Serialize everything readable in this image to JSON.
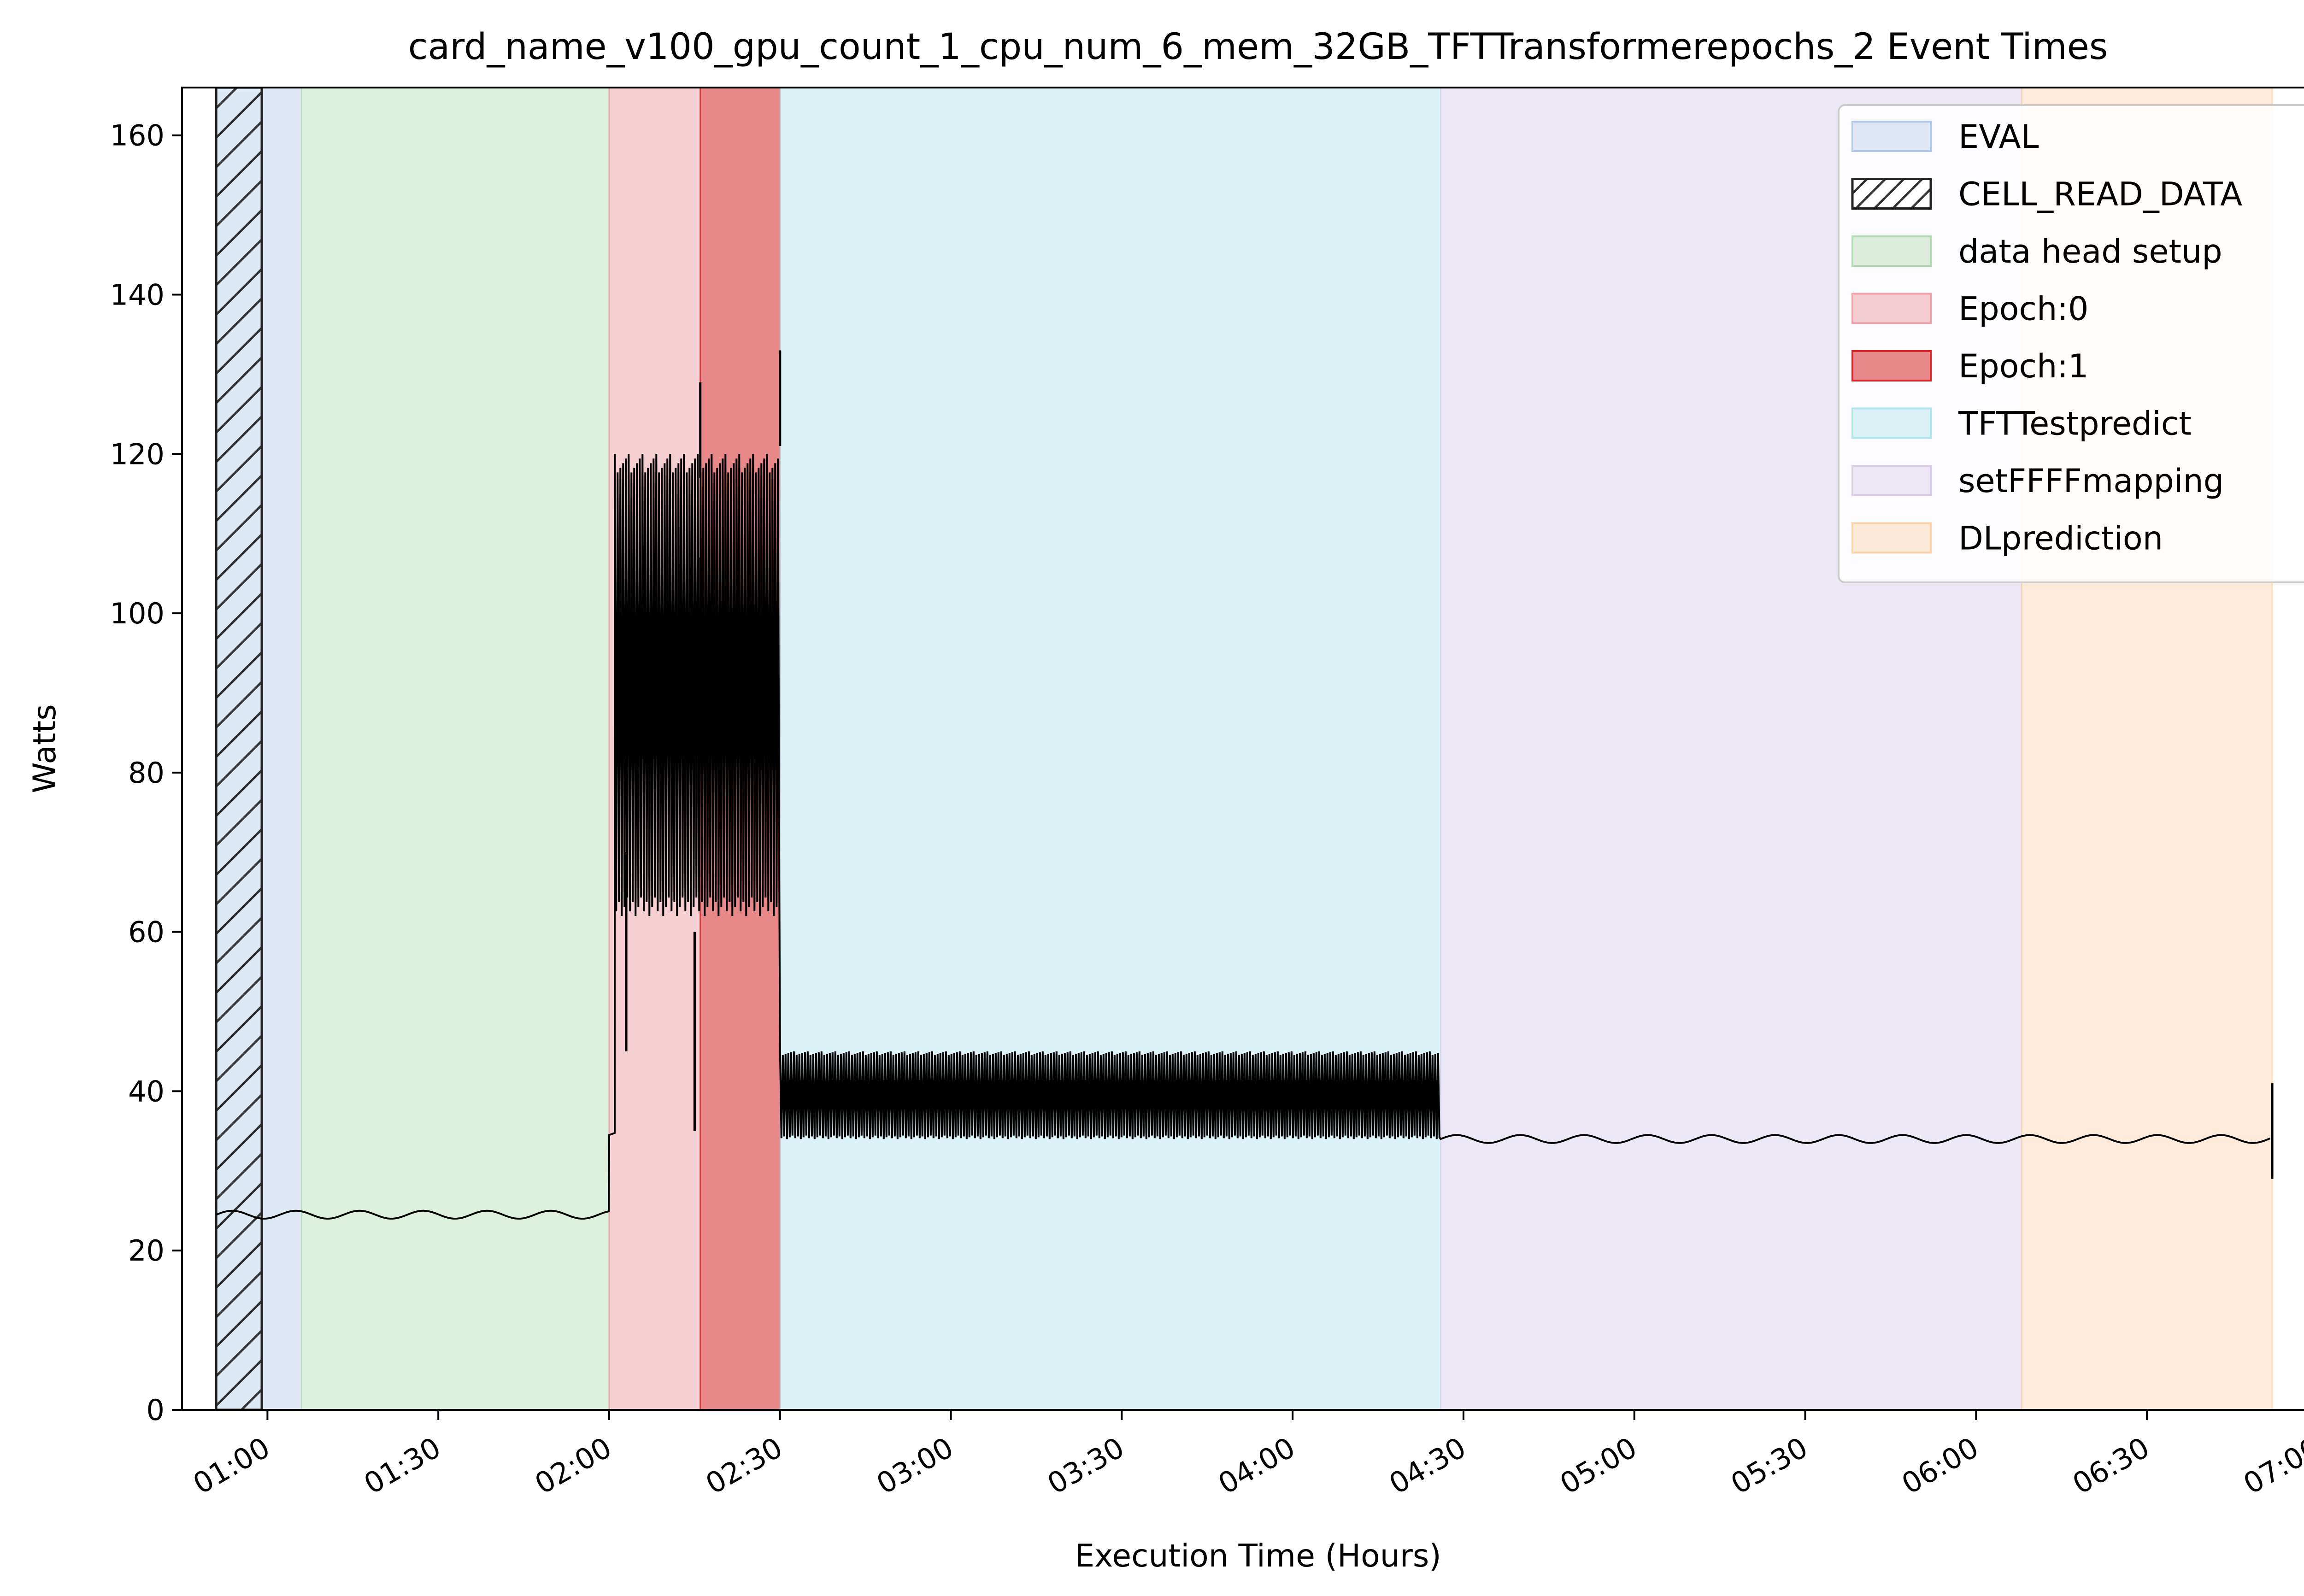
{
  "chart_data": {
    "type": "line",
    "title": "card_name_v100_gpu_count_1_cpu_num_6_mem_32GB_TFTTransformerepochs_2 Event Times",
    "xlabel": "Execution Time (Hours)",
    "ylabel": "Watts",
    "x_unit": "hours (HH:MM)",
    "xlim": [
      "00:45",
      "07:03"
    ],
    "ylim": [
      0,
      166
    ],
    "x_ticks": [
      "01:00",
      "01:30",
      "02:00",
      "02:30",
      "03:00",
      "03:30",
      "04:00",
      "04:30",
      "05:00",
      "05:30",
      "06:00",
      "06:30",
      "07:00"
    ],
    "y_ticks": [
      "0",
      "20",
      "40",
      "60",
      "80",
      "100",
      "120",
      "140",
      "160"
    ],
    "grid": false,
    "legend_position": "top-right",
    "events": [
      {
        "name": "EVAL",
        "start": "00:51",
        "end": "01:06",
        "color": "#aec7e8",
        "alpha": 0.4,
        "hatch": false
      },
      {
        "name": "CELL_READ_DATA",
        "start": "00:51",
        "end": "00:59",
        "color": "#ffffff",
        "alpha": 0,
        "hatch": true
      },
      {
        "name": "data head setup",
        "start": "01:06",
        "end": "02:00",
        "color": "#b4dcb4",
        "alpha": 0.45,
        "hatch": false
      },
      {
        "name": "Epoch:0",
        "start": "02:00",
        "end": "02:16",
        "color": "#eea0a8",
        "alpha": 0.5,
        "hatch": false
      },
      {
        "name": "Epoch:1",
        "start": "02:16",
        "end": "02:30",
        "color": "#d62728",
        "alpha": 0.55,
        "hatch": false
      },
      {
        "name": "TFTTestpredict",
        "start": "02:30",
        "end": "04:26",
        "color": "#b0e4ec",
        "alpha": 0.45,
        "hatch": false
      },
      {
        "name": "setFFFFmapping",
        "start": "04:26",
        "end": "06:08",
        "color": "#d8cce8",
        "alpha": 0.45,
        "hatch": false
      },
      {
        "name": "DLprediction",
        "start": "06:08",
        "end": "06:52",
        "color": "#fcd2aa",
        "alpha": 0.45,
        "hatch": false
      }
    ],
    "series": [
      {
        "name": "",
        "color": "#000000",
        "segments": [
          {
            "start": "00:51",
            "end": "02:00",
            "low": 24,
            "high": 25,
            "pattern": "steady"
          },
          {
            "start": "02:00",
            "end": "02:01",
            "low": 34,
            "high": 35,
            "pattern": "steady"
          },
          {
            "start": "02:01",
            "end": "02:30",
            "low": 62,
            "high": 120,
            "pattern": "dense_oscillation"
          },
          {
            "start": "02:30",
            "end": "04:26",
            "low": 34,
            "high": 45,
            "pattern": "dense_oscillation"
          },
          {
            "start": "04:26",
            "end": "06:52",
            "low": 33.5,
            "high": 34.5,
            "pattern": "steady"
          }
        ],
        "spikes": [
          {
            "x": "02:16",
            "y": 129
          },
          {
            "x": "02:30",
            "y": 133
          },
          {
            "x": "06:52",
            "y": 41
          }
        ],
        "dips": [
          {
            "x": "02:03",
            "y": 45
          },
          {
            "x": "02:15",
            "y": 35
          },
          {
            "x": "02:16",
            "y": 82
          }
        ]
      }
    ]
  }
}
